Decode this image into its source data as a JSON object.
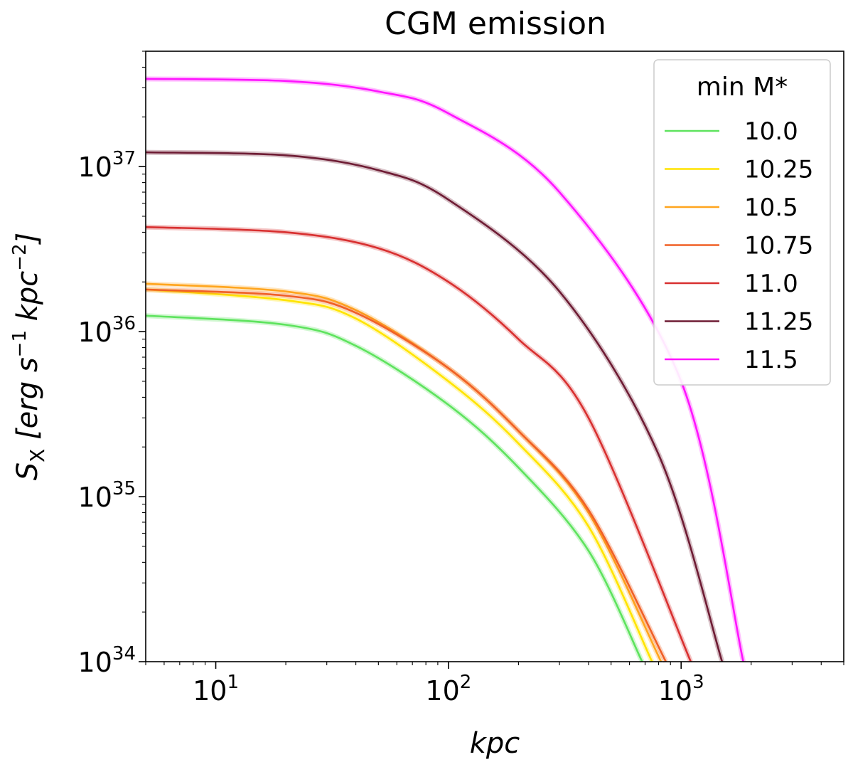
{
  "chart_data": {
    "type": "line",
    "title": "CGM emission",
    "xlabel": "kpc",
    "ylabel": "S_X [erg s^-1 kpc^-2]",
    "ylabel_parts": {
      "sym": "S",
      "sub": "X",
      "unit1": "erg s",
      "exp1": "−1",
      "unit2": "kpc",
      "exp2": "−2"
    },
    "xscale": "log",
    "yscale": "log",
    "xlim": [
      5,
      5000
    ],
    "ylim": [
      1e+34,
      5e+37
    ],
    "x_ticks": [
      {
        "value": 10,
        "base": "10",
        "exp": "1"
      },
      {
        "value": 100,
        "base": "10",
        "exp": "2"
      },
      {
        "value": 1000,
        "base": "10",
        "exp": "3"
      }
    ],
    "y_ticks": [
      {
        "value": 1e+34,
        "base": "10",
        "exp": "34"
      },
      {
        "value": 1e+35,
        "base": "10",
        "exp": "35"
      },
      {
        "value": 1e+36,
        "base": "10",
        "exp": "36"
      },
      {
        "value": 1e+37,
        "base": "10",
        "exp": "37"
      }
    ],
    "grid": false,
    "legend": {
      "title": "min M*",
      "position": "upper right"
    },
    "series": [
      {
        "name": "10.0",
        "color": "#5ee35e",
        "x": [
          5,
          20,
          40,
          100,
          200,
          400,
          680
        ],
        "y": [
          1.25e+36,
          1.1e+36,
          8.2e+35,
          3.6e+35,
          1.5e+35,
          4.7e+34,
          1e+34
        ]
      },
      {
        "name": "10.25",
        "color": "#ffe400",
        "x": [
          5,
          20,
          40,
          100,
          200,
          400,
          750
        ],
        "y": [
          1.8e+36,
          1.55e+36,
          1.2e+36,
          5e+35,
          2.1e+35,
          6.6e+34,
          1e+34
        ]
      },
      {
        "name": "10.5",
        "color": "#ffa51e",
        "x": [
          5,
          20,
          40,
          100,
          200,
          400,
          820
        ],
        "y": [
          1.95e+36,
          1.75e+36,
          1.35e+36,
          6e+35,
          2.5e+35,
          8e+34,
          1e+34
        ]
      },
      {
        "name": "10.75",
        "color": "#f06026",
        "x": [
          5,
          20,
          40,
          100,
          200,
          400,
          860
        ],
        "y": [
          1.8e+36,
          1.65e+36,
          1.3e+36,
          6e+35,
          2.5e+35,
          8.3e+34,
          1e+34
        ]
      },
      {
        "name": "11.0",
        "color": "#d83030",
        "x": [
          5,
          20,
          50,
          100,
          200,
          400,
          1100
        ],
        "y": [
          4.3e+36,
          4e+36,
          3.2e+36,
          2e+36,
          9e+35,
          3e+35,
          1e+34
        ]
      },
      {
        "name": "11.25",
        "color": "#6e1c34",
        "x": [
          5,
          20,
          50,
          100,
          300,
          800,
          1500
        ],
        "y": [
          1.22e+37,
          1.17e+37,
          9.5e+36,
          6.3e+36,
          1.75e+36,
          1.8e+35,
          1e+34
        ]
      },
      {
        "name": "11.5",
        "color": "#ff14ff",
        "x": [
          5,
          20,
          50,
          100,
          300,
          1000,
          1850
        ],
        "y": [
          3.4e+37,
          3.3e+37,
          2.85e+37,
          2.1e+37,
          7e+36,
          5e+35,
          1e+34
        ]
      }
    ]
  }
}
